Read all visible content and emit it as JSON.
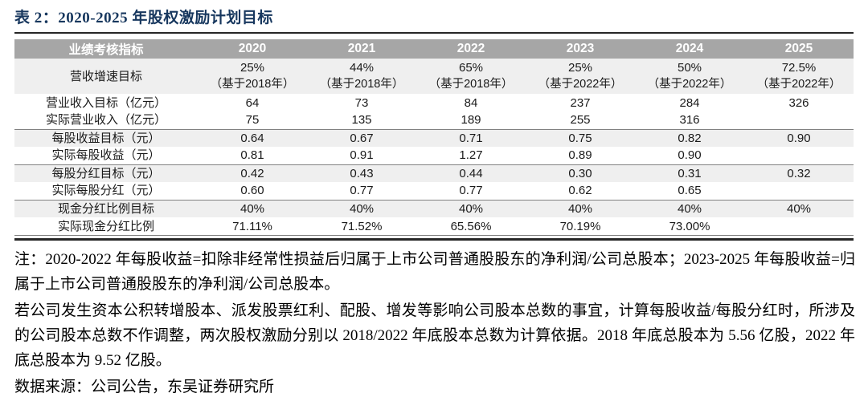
{
  "caption": "表 2：2020-2025 年股权激励计划目标",
  "colors": {
    "title_color": "#17375e",
    "header_bg": "#a6a6a6",
    "header_text": "#ffffff",
    "shaded_row_bg": "#efefef",
    "rule_dark": "#262626",
    "rule_gray": "#808080",
    "text_color": "#1a1a1a"
  },
  "table": {
    "header": [
      "业绩考核指标",
      "2020",
      "2021",
      "2022",
      "2023",
      "2024",
      "2025"
    ],
    "rows": [
      {
        "label": "营收增速目标",
        "shaded": true,
        "group_end": false,
        "two_line": true,
        "cells": [
          [
            "25%",
            "（基于2018年）"
          ],
          [
            "44%",
            "（基于2018年）"
          ],
          [
            "65%",
            "（基于2018年）"
          ],
          [
            "25%",
            "（基于2022年）"
          ],
          [
            "50%",
            "（基于2022年）"
          ],
          [
            "72.5%",
            "（基于2022年）"
          ]
        ]
      },
      {
        "label": "营业收入目标（亿元）",
        "shaded": false,
        "group_end": false,
        "two_line": false,
        "cells": [
          "64",
          "73",
          "84",
          "237",
          "284",
          "326"
        ]
      },
      {
        "label": "实际营业收入（亿元）",
        "shaded": false,
        "group_end": true,
        "two_line": false,
        "cells": [
          "75",
          "135",
          "189",
          "255",
          "316",
          ""
        ]
      },
      {
        "label": "每股收益目标（元）",
        "shaded": true,
        "group_end": false,
        "two_line": false,
        "cells": [
          "0.64",
          "0.67",
          "0.71",
          "0.75",
          "0.82",
          "0.90"
        ]
      },
      {
        "label": "实际每股收益（元）",
        "shaded": false,
        "group_end": true,
        "two_line": false,
        "cells": [
          "0.81",
          "0.91",
          "1.27",
          "0.89",
          "0.90",
          ""
        ]
      },
      {
        "label": "每股分红目标（元）",
        "shaded": true,
        "group_end": false,
        "two_line": false,
        "cells": [
          "0.42",
          "0.43",
          "0.44",
          "0.30",
          "0.31",
          "0.32"
        ]
      },
      {
        "label": "实际每股分红（元）",
        "shaded": false,
        "group_end": true,
        "two_line": false,
        "cells": [
          "0.60",
          "0.77",
          "0.77",
          "0.62",
          "0.65",
          ""
        ]
      },
      {
        "label": "现金分红比例目标",
        "shaded": true,
        "group_end": false,
        "two_line": false,
        "cells": [
          "40%",
          "40%",
          "40%",
          "40%",
          "40%",
          "40%"
        ]
      },
      {
        "label": "实际现金分红比例",
        "shaded": false,
        "group_end": false,
        "two_line": false,
        "cells": [
          "71.11%",
          "71.52%",
          "65.56%",
          "70.19%",
          "73.00%",
          ""
        ]
      }
    ]
  },
  "notes": [
    "注：2020-2022 年每股收益=扣除非经常性损益后归属于上市公司普通股股东的净利润/公司总股本；2023-2025 年每股收益=归属于上市公司普通股股东的净利润/公司总股本。",
    "若公司发生资本公积转增股本、派发股票红利、配股、增发等影响公司股本总数的事宜，计算每股收益/每股分红时，所涉及的公司股本总数不作调整，两次股权激励分别以 2018/2022 年底股本总数为计算依据。2018 年底总股本为 5.56 亿股，2022 年底总股本为 9.52 亿股。"
  ],
  "source": "数据来源：公司公告，东吴证券研究所"
}
